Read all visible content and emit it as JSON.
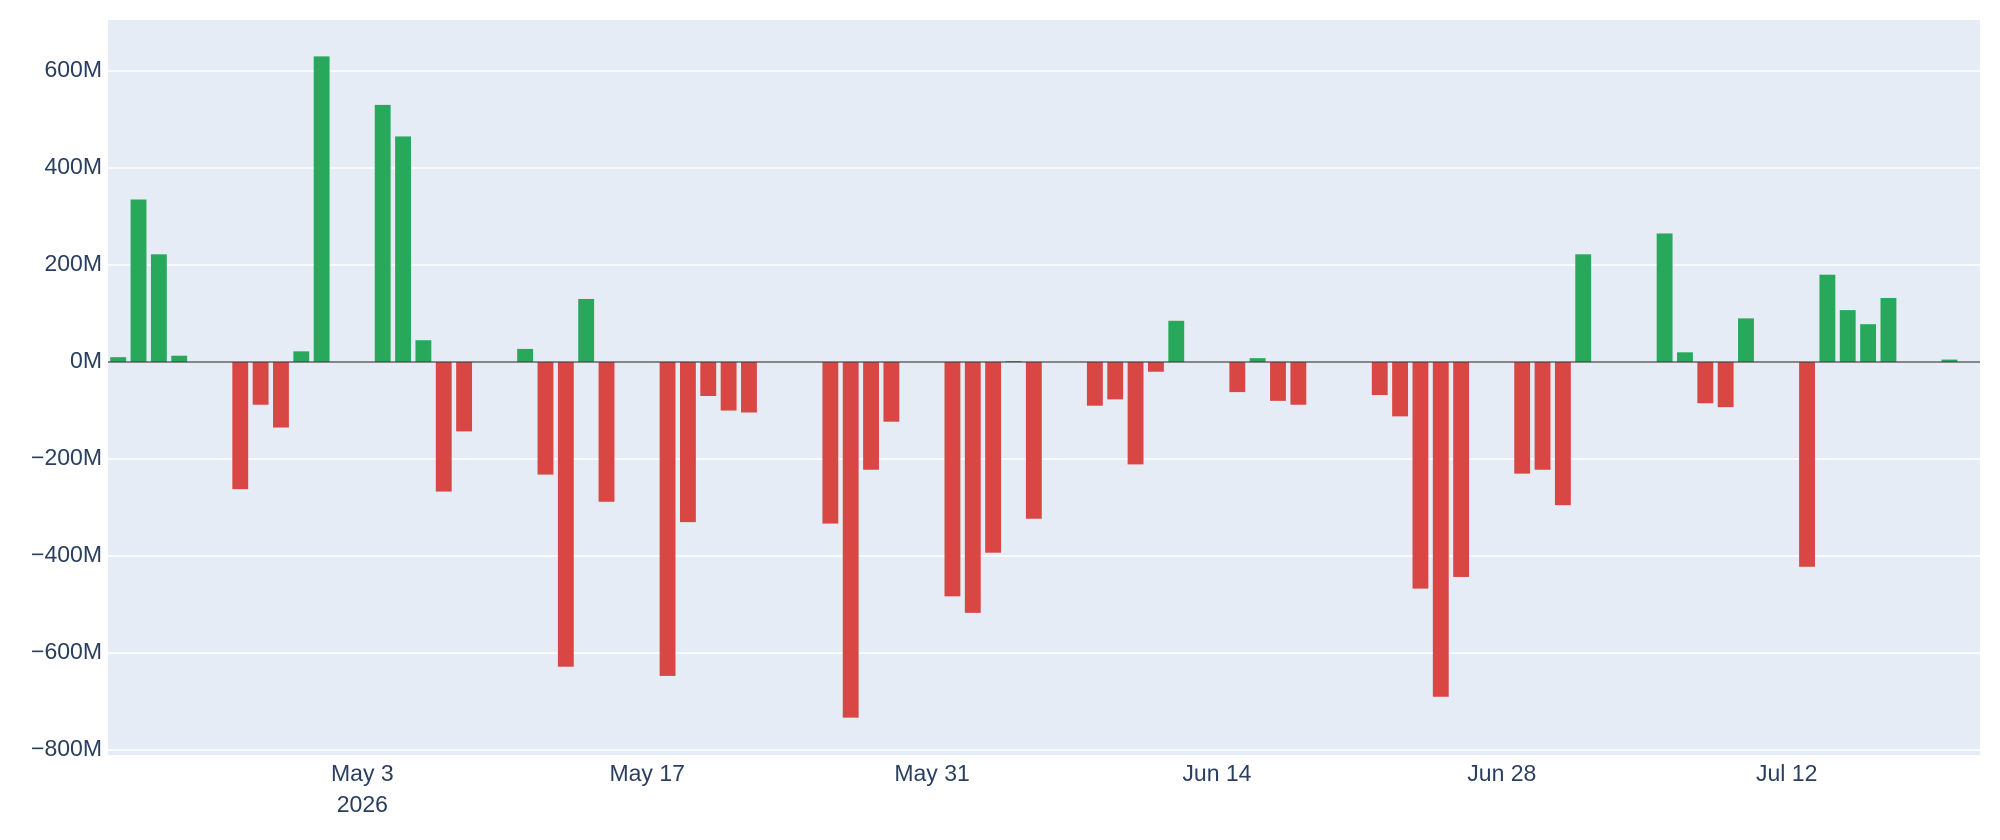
{
  "chart_data": {
    "type": "bar",
    "x": [
      "2026-04-21",
      "2026-04-22",
      "2026-04-23",
      "2026-04-24",
      "2026-04-27",
      "2026-04-28",
      "2026-04-29",
      "2026-04-30",
      "2026-05-01",
      "2026-05-04",
      "2026-05-05",
      "2026-05-06",
      "2026-05-07",
      "2026-05-08",
      "2026-05-11",
      "2026-05-12",
      "2026-05-13",
      "2026-05-14",
      "2026-05-15",
      "2026-05-18",
      "2026-05-19",
      "2026-05-20",
      "2026-05-21",
      "2026-05-22",
      "2026-05-26",
      "2026-05-27",
      "2026-05-28",
      "2026-05-29",
      "2026-06-01",
      "2026-06-02",
      "2026-06-03",
      "2026-06-04",
      "2026-06-05",
      "2026-06-08",
      "2026-06-09",
      "2026-06-10",
      "2026-06-11",
      "2026-06-12",
      "2026-06-15",
      "2026-06-16",
      "2026-06-17",
      "2026-06-18",
      "2026-06-22",
      "2026-06-23",
      "2026-06-24",
      "2026-06-25",
      "2026-06-26",
      "2026-06-29",
      "2026-06-30",
      "2026-07-01",
      "2026-07-02",
      "2026-07-06",
      "2026-07-07",
      "2026-07-08",
      "2026-07-09",
      "2026-07-10",
      "2026-07-13",
      "2026-07-14",
      "2026-07-15",
      "2026-07-16",
      "2026-07-17",
      "2026-07-20"
    ],
    "values": [
      10000000,
      335000000,
      222000000,
      13000000,
      -262000000,
      -88000000,
      -135000000,
      22000000,
      630000000,
      530000000,
      465000000,
      45000000,
      -267000000,
      -143000000,
      27000000,
      -232000000,
      -628000000,
      130000000,
      -288000000,
      -647000000,
      -330000000,
      -70000000,
      -100000000,
      -104000000,
      -333000000,
      -733000000,
      -222000000,
      -123000000,
      -483000000,
      -517000000,
      -393000000,
      2000000,
      -323000000,
      -90000000,
      -77000000,
      -211000000,
      -20000000,
      85000000,
      -62000000,
      8000000,
      -80000000,
      -88000000,
      -68000000,
      -112000000,
      -467000000,
      -690000000,
      -443000000,
      -230000000,
      -222000000,
      -295000000,
      222000000,
      265000000,
      20000000,
      -85000000,
      -93000000,
      90000000,
      -422000000,
      180000000,
      107000000,
      78000000,
      132000000,
      5000000
    ],
    "positive_color": "#28a85b",
    "negative_color": "#d94744",
    "xlim": [
      "2026-04-20 12:00",
      "2026-07-21 12:00"
    ],
    "xticks": [
      {
        "value": "2026-05-03",
        "label": "May 3\n2026"
      },
      {
        "value": "2026-05-17",
        "label": "May 17"
      },
      {
        "value": "2026-05-31",
        "label": "May 31"
      },
      {
        "value": "2026-06-14",
        "label": "Jun 14"
      },
      {
        "value": "2026-06-28",
        "label": "Jun 28"
      },
      {
        "value": "2026-07-12",
        "label": "Jul 12"
      }
    ],
    "ylim": [
      -810000000,
      705000000
    ],
    "yticks": [
      {
        "value": -800000000,
        "label": "−800M"
      },
      {
        "value": -600000000,
        "label": "−600M"
      },
      {
        "value": -400000000,
        "label": "−400M"
      },
      {
        "value": -200000000,
        "label": "−200M"
      },
      {
        "value": 0,
        "label": "0M"
      },
      {
        "value": 200000000,
        "label": "200M"
      },
      {
        "value": 400000000,
        "label": "400M"
      },
      {
        "value": 600000000,
        "label": "600M"
      }
    ],
    "grid": true
  }
}
